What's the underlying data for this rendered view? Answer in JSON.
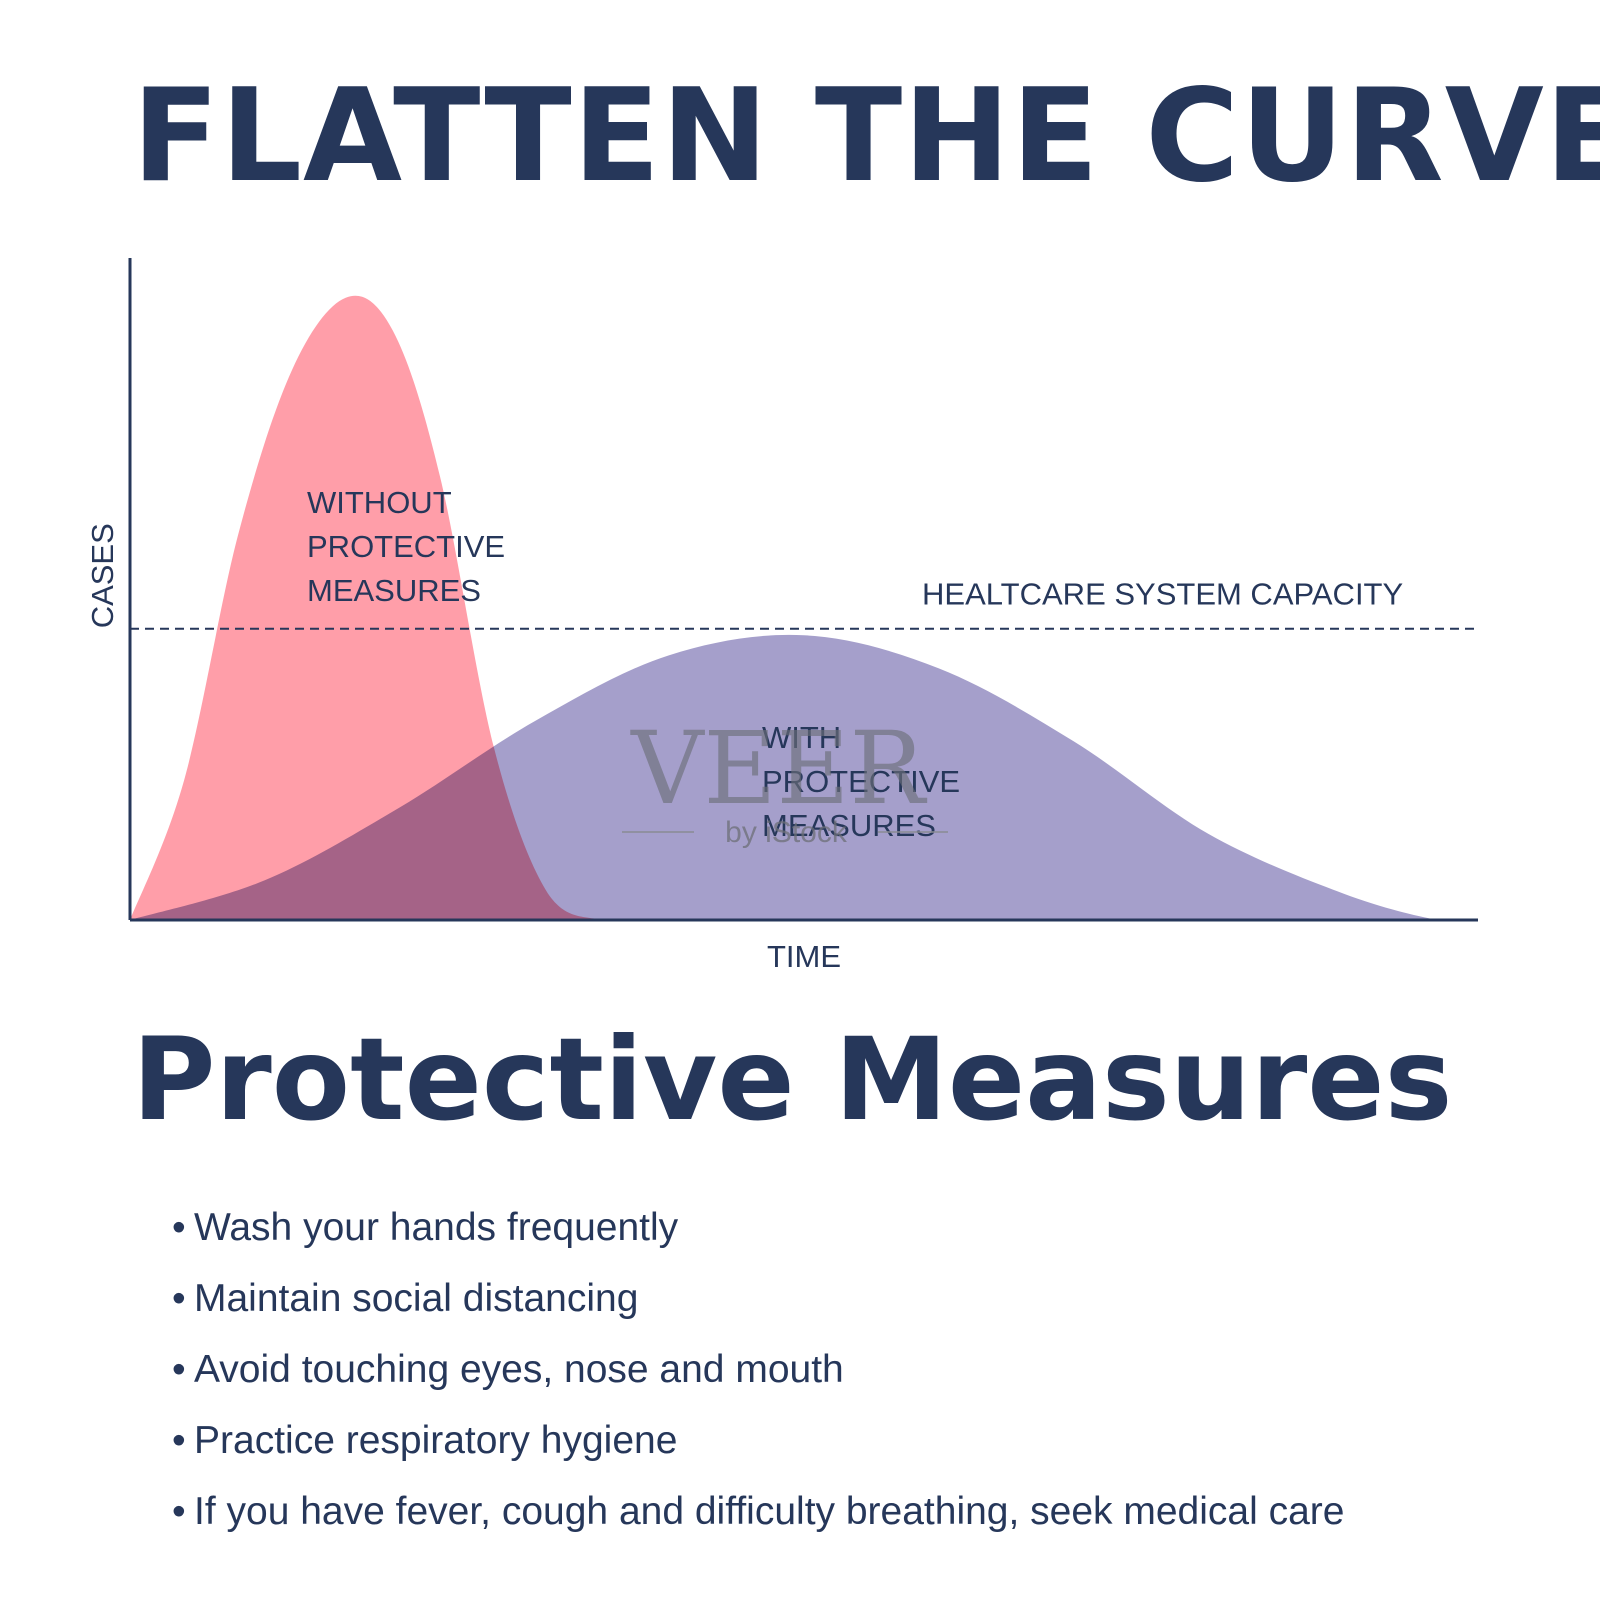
{
  "title": "FLATTEN THE CURVE",
  "subtitle": "Protective Measures",
  "colors": {
    "text": "#26375a",
    "without_fill": "#ff8d9a",
    "with_fill": "#8c84bd",
    "overlap_hint": "#e07799",
    "axis": "#26375a"
  },
  "chart_data": {
    "type": "area",
    "xlabel": "TIME",
    "ylabel": "CASES",
    "grid": false,
    "legend": "none",
    "xlim": [
      0,
      100
    ],
    "ylim": [
      0,
      100
    ],
    "capacity": {
      "label": "HEALTCARE SYSTEM CAPACITY",
      "value": 44
    },
    "series": [
      {
        "name_lines": [
          "WITHOUT",
          "PROTECTIVE",
          "MEASURES"
        ],
        "color": "#ff8d9a",
        "x": [
          0,
          4,
          8,
          12,
          16,
          19.5,
          23,
          27,
          31,
          35,
          39,
          100
        ],
        "y": [
          0,
          21,
          58,
          83,
          94,
          89,
          67,
          26,
          4,
          0,
          0,
          0
        ]
      },
      {
        "name_lines": [
          "WITH",
          "PROTECTIVE",
          "MEASURES"
        ],
        "color": "#8c84bd",
        "x": [
          0,
          10,
          20,
          30,
          40,
          50,
          60,
          70,
          80,
          90,
          97,
          100
        ],
        "y": [
          0,
          6,
          17,
          30,
          40,
          43,
          38,
          27,
          13,
          4,
          0,
          0
        ]
      }
    ]
  },
  "watermark": {
    "brand": "VEER",
    "sub": "by iStock"
  },
  "measures": [
    "Wash your hands frequently",
    "Maintain social distancing",
    "Avoid touching eyes, nose and mouth",
    "Practice respiratory hygiene",
    "If you have fever, cough and difficulty breathing, seek medical care"
  ]
}
